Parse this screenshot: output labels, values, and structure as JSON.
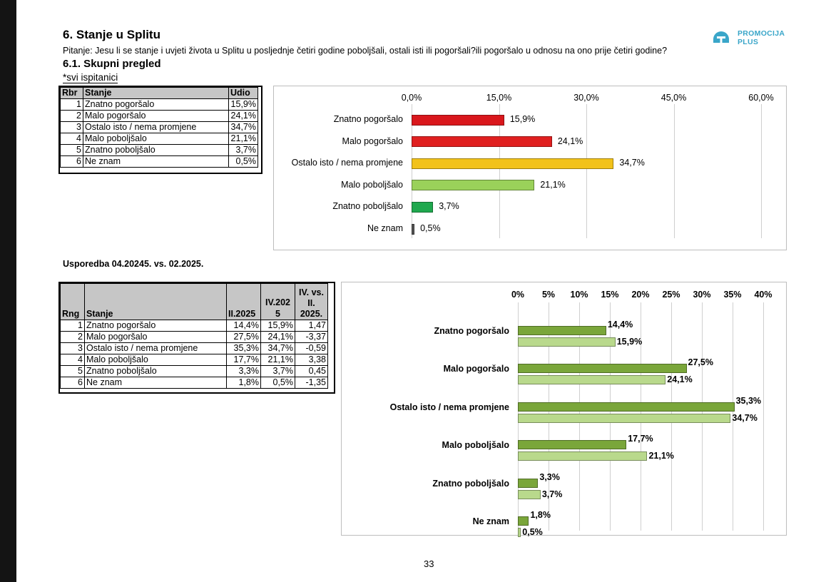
{
  "header": {
    "title": "6. Stanje u Splitu",
    "question": "Pitanje: Jesu li se stanje i uvjeti života u Splitu u posljednje četiri godine poboljšali, ostali isti ili pogoršali?ili pogoršalo u odnosu na ono prije četiri godine?",
    "section": "6.1. Skupni pregled",
    "subset": "*svi ispitanici",
    "logo_line1": "PROMOCIJA",
    "logo_line2": "PLUS"
  },
  "table1": {
    "headers": [
      "Rbr",
      "Stanje",
      "Udio"
    ],
    "rows": [
      {
        "rbr": "1",
        "stanje": "Znatno pogoršalo",
        "udio": "15,9%"
      },
      {
        "rbr": "2",
        "stanje": "Malo pogoršalo",
        "udio": "24,1%"
      },
      {
        "rbr": "3",
        "stanje": "Ostalo isto / nema promjene",
        "udio": "34,7%"
      },
      {
        "rbr": "4",
        "stanje": "Malo poboljšalo",
        "udio": "21,1%"
      },
      {
        "rbr": "5",
        "stanje": "Znatno poboljšalo",
        "udio": "3,7%"
      },
      {
        "rbr": "6",
        "stanje": "Ne znam",
        "udio": "0,5%"
      }
    ]
  },
  "comparison_title": "Usporedba 04.20245. vs. 02.2025.",
  "table2": {
    "headers": {
      "rng": "Rng",
      "stanje": "Stanje",
      "c1": "II.2025",
      "c2a": "IV.202",
      "c2b": "5",
      "c3a": "IV. vs.",
      "c3b": "II.",
      "c3c": "2025."
    },
    "rows": [
      {
        "rng": "1",
        "stanje": "Znatno pogoršalo",
        "c1": "14,4%",
        "c2": "15,9%",
        "c3": "1,47"
      },
      {
        "rng": "2",
        "stanje": "Malo pogoršalo",
        "c1": "27,5%",
        "c2": "24,1%",
        "c3": "-3,37"
      },
      {
        "rng": "3",
        "stanje": "Ostalo isto / nema promjene",
        "c1": "35,3%",
        "c2": "34,7%",
        "c3": "-0,59"
      },
      {
        "rng": "4",
        "stanje": "Malo poboljšalo",
        "c1": "17,7%",
        "c2": "21,1%",
        "c3": "3,38"
      },
      {
        "rng": "5",
        "stanje": "Znatno poboljšalo",
        "c1": "3,3%",
        "c2": "3,7%",
        "c3": "0,45"
      },
      {
        "rng": "6",
        "stanje": "Ne znam",
        "c1": "1,8%",
        "c2": "0,5%",
        "c3": "-1,35"
      }
    ]
  },
  "page_number": "33",
  "chart_data": [
    {
      "type": "bar",
      "orientation": "horizontal",
      "categories": [
        "Znatno pogoršalo",
        "Malo pogoršalo",
        "Ostalo isto / nema promjene",
        "Malo poboljšalo",
        "Znatno poboljšalo",
        "Ne znam"
      ],
      "values": [
        15.9,
        24.1,
        34.7,
        21.1,
        3.7,
        0.5
      ],
      "value_labels": [
        "15,9%",
        "24,1%",
        "34,7%",
        "21,1%",
        "3,7%",
        "0,5%"
      ],
      "colors": [
        "#d9171c",
        "#e02020",
        "#f2c21a",
        "#9ad15a",
        "#1fa84e",
        "#555555"
      ],
      "xlim": [
        0,
        60
      ],
      "ticks": [
        0,
        15,
        30,
        45,
        60
      ],
      "tick_labels": [
        "0,0%",
        "15,0%",
        "30,0%",
        "45,0%",
        "60,0%"
      ],
      "axis_position": "top"
    },
    {
      "type": "bar",
      "orientation": "horizontal",
      "categories": [
        "Znatno pogoršalo",
        "Malo pogoršalo",
        "Ostalo isto / nema promjene",
        "Malo poboljšalo",
        "Znatno poboljšalo",
        "Ne znam"
      ],
      "series": [
        {
          "name": "II.2025",
          "values": [
            14.4,
            27.5,
            35.3,
            17.7,
            3.3,
            1.8
          ],
          "labels": [
            "14,4%",
            "27,5%",
            "35,3%",
            "17,7%",
            "3,3%",
            "1,8%"
          ],
          "color": "#7aa63a"
        },
        {
          "name": "IV.2025",
          "values": [
            15.9,
            24.1,
            34.7,
            21.1,
            3.7,
            0.5
          ],
          "labels": [
            "15,9%",
            "24,1%",
            "34,7%",
            "21,1%",
            "3,7%",
            "0,5%"
          ],
          "color": "#b9d98c"
        }
      ],
      "xlim": [
        0,
        40
      ],
      "ticks": [
        0,
        5,
        10,
        15,
        20,
        25,
        30,
        35,
        40
      ],
      "tick_labels": [
        "0%",
        "5%",
        "10%",
        "15%",
        "20%",
        "25%",
        "30%",
        "35%",
        "40%"
      ],
      "axis_position": "top"
    }
  ]
}
